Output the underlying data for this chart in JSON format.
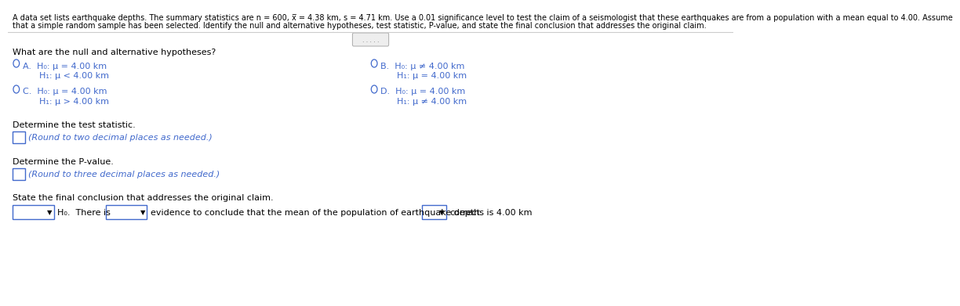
{
  "bg_color": "#ffffff",
  "text_color": "#000000",
  "blue_color": "#4169cc",
  "gray_color": "#888888",
  "header_line1": "A data set lists earthquake depths. The summary statistics are n = 600, x̅ = 4.38 km, s = 4.71 km. Use a 0.01 significance level to test the claim of a seismologist that these earthquakes are from a population with a mean equal to 4.00. Assume",
  "header_line2": "that a simple random sample has been selected. Identify the null and alternative hypotheses, test statistic, P-value, and state the final conclusion that addresses the original claim.",
  "section1": "What are the null and alternative hypotheses?",
  "optA_h0": "A.  H₀: μ = 4.00 km",
  "optA_h1": "      H₁: μ < 4.00 km",
  "optB_h0": "B.  H₀: μ ≠ 4.00 km",
  "optB_h1": "      H₁: μ = 4.00 km",
  "optC_h0": "C.  H₀: μ = 4.00 km",
  "optC_h1": "      H₁: μ > 4.00 km",
  "optD_h0": "D.  H₀: μ = 4.00 km",
  "optD_h1": "      H₁: μ ≠ 4.00 km",
  "section2": "Determine the test statistic.",
  "section2_hint": "(Round to two decimal places as needed.)",
  "section3": "Determine the P-value.",
  "section3_hint": "(Round to three decimal places as needed.)",
  "section4": "State the final conclusion that addresses the original claim.",
  "conclude_mid": "evidence to conclude that the mean of the population of earthquake depths is 4.00 km",
  "conclude_end": "correct.",
  "H0_there_is": "H₀.  There is",
  "fs_header": 7.0,
  "fs_body": 8.0,
  "fs_opt": 8.0,
  "fs_radio": 7.5
}
